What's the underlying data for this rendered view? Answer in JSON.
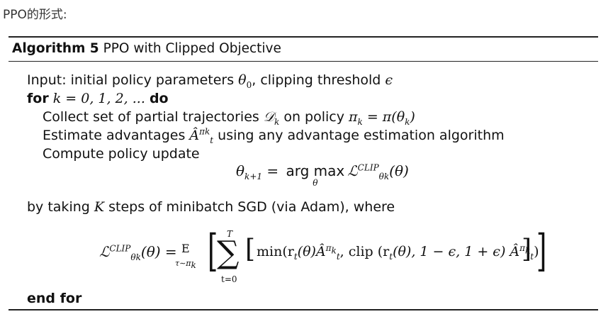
{
  "caption": "PPO的形式:",
  "algorithm": {
    "number_label": "Algorithm 5",
    "title": "PPO with Clipped Objective"
  },
  "lines": {
    "input_text": "Input: initial policy parameters",
    "input_theta": "θ",
    "input_theta_sub": "0",
    "input_clip": ", clipping threshold",
    "input_eps": "ϵ",
    "for_kw": "for",
    "for_expr": "k = 0, 1, 2, ...",
    "do_kw": "do",
    "collect_text": "Collect set of partial trajectories",
    "collect_D": "𝒟",
    "collect_k": "k",
    "collect_on": "on policy",
    "collect_pi": "π",
    "collect_eq": " = π(θ",
    "collect_close": ")",
    "estimate_text": "Estimate advantages",
    "estimate_A": "Â",
    "estimate_sup": "π",
    "estimate_supk": "k",
    "estimate_sub": "t",
    "estimate_rest": "using any advantage estimation algorithm",
    "compute_text": "Compute policy update",
    "update_lhs": "θ",
    "update_lhs_sub": "k+1",
    "update_eq": " = ",
    "update_arg": "arg max",
    "update_under": "θ",
    "update_L": "ℒ",
    "update_L_sup": "CLIP",
    "update_L_sub": "θ",
    "update_L_subk": "k",
    "update_rest": "(θ)",
    "by_taking_1": "by taking",
    "by_taking_K": "K",
    "by_taking_2": "steps of minibatch SGD (via Adam), where",
    "obj_L": "ℒ",
    "obj_sup": "CLIP",
    "obj_sub": "θ",
    "obj_subk": "k",
    "obj_rest": "(θ) =",
    "obj_E": "E",
    "obj_E_sub": "τ∼π",
    "obj_E_subk": "k",
    "obj_sum_top": "T",
    "obj_sum_bot": "t=0",
    "obj_min": "min(r",
    "obj_body": "(θ)Â",
    "obj_clip": ", clip (r",
    "obj_clip_rest": "(θ), 1 − ϵ, 1 + ϵ) Â",
    "obj_close": ")",
    "end_for": "end for"
  }
}
